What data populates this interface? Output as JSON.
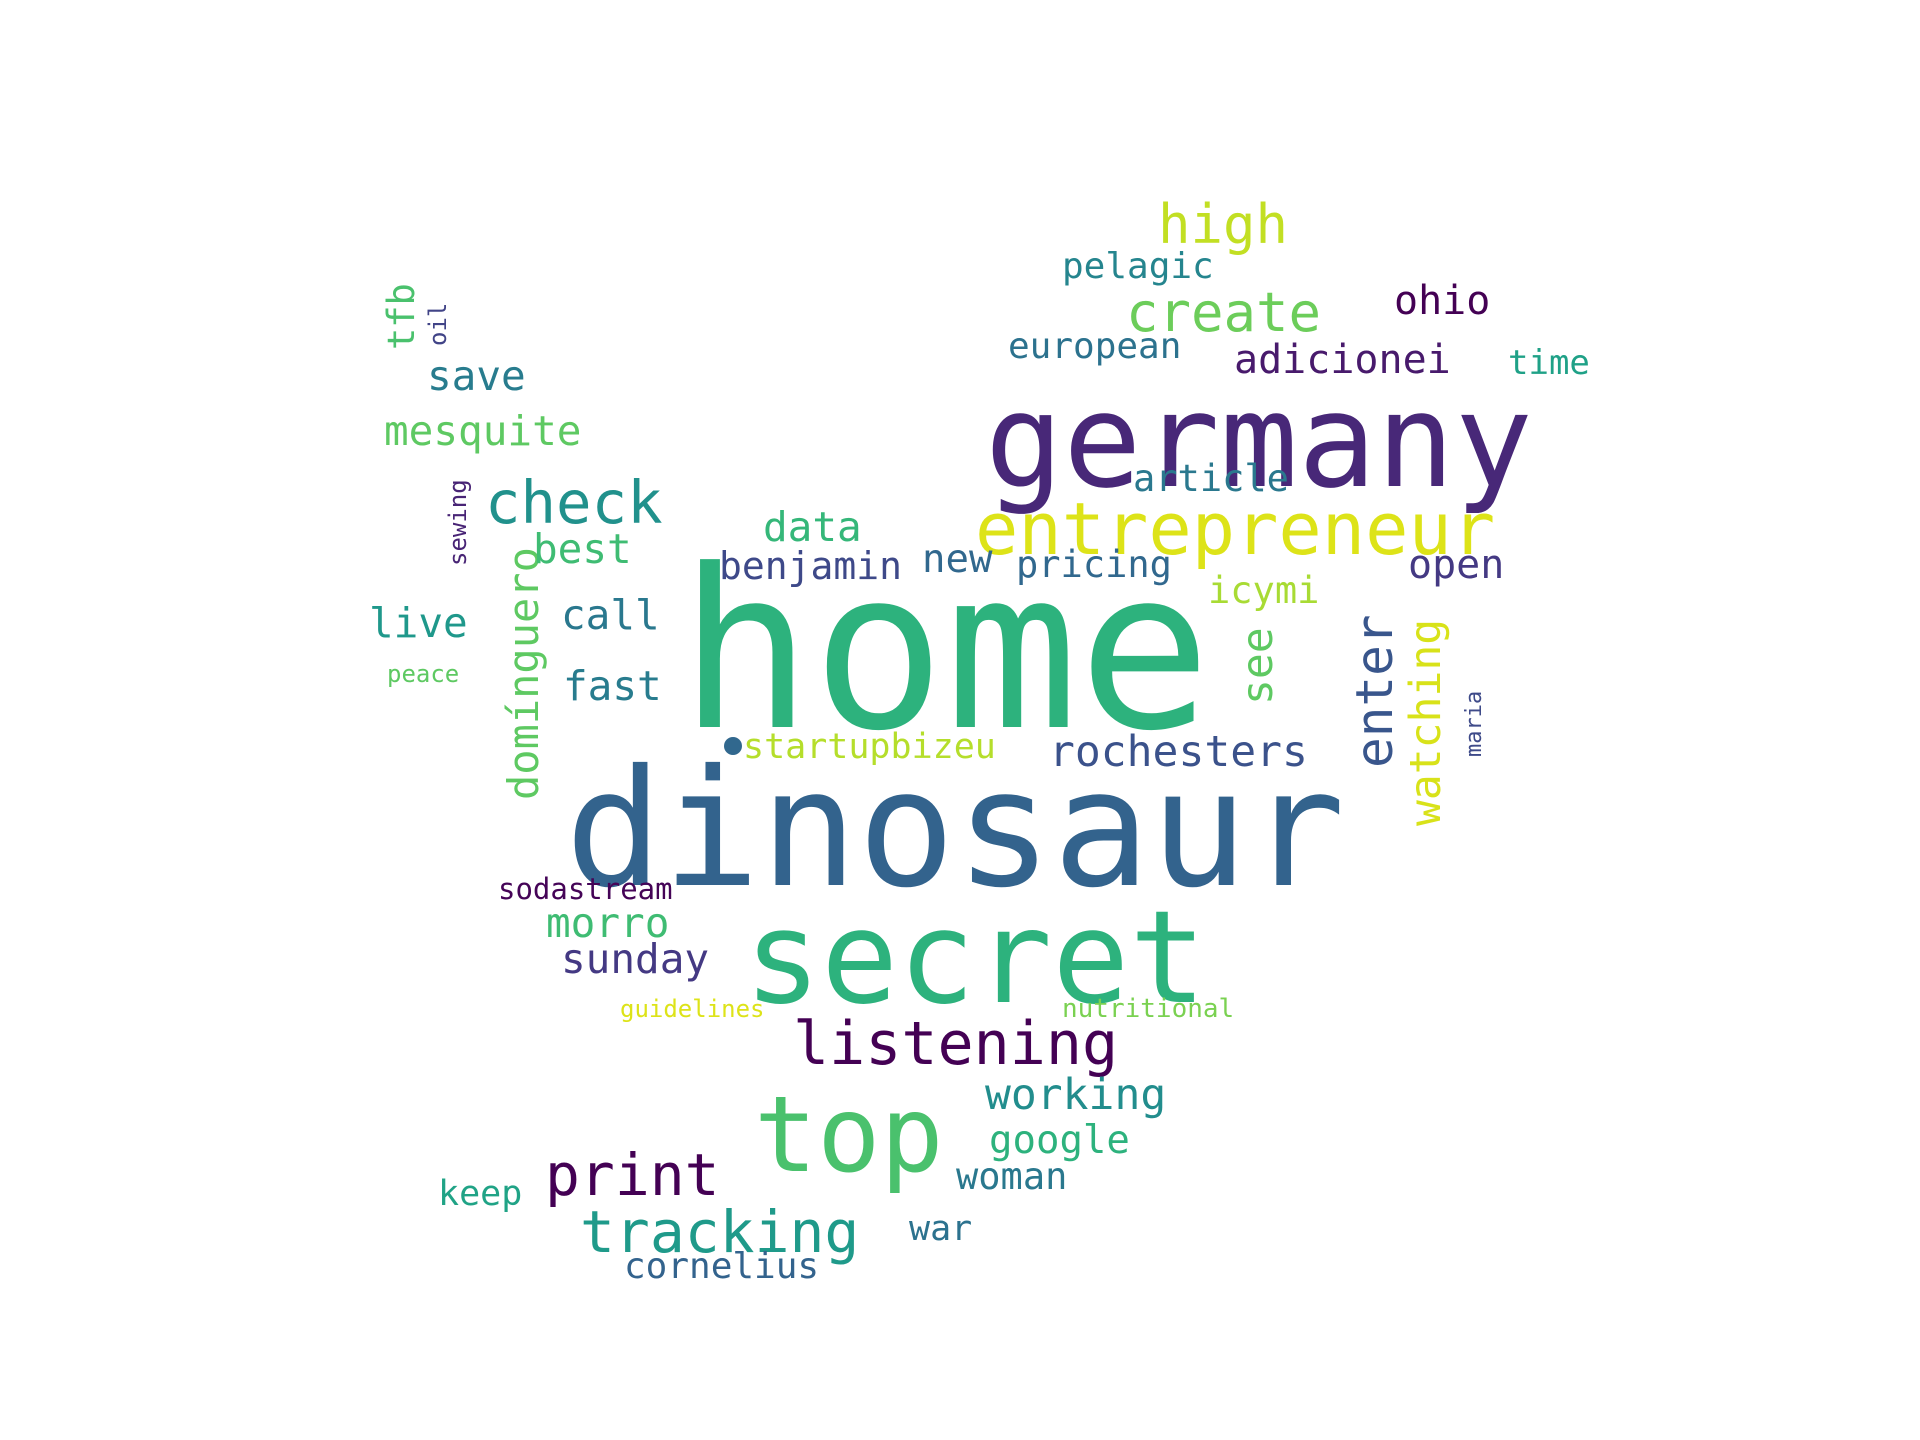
{
  "words": [
    {
      "text": "home",
      "color": "#2db27d"
    },
    {
      "text": "dinosaur",
      "color": "#33638d"
    },
    {
      "text": "secret",
      "color": "#2db27d"
    },
    {
      "text": "germany",
      "color": "#482878"
    },
    {
      "text": "top",
      "color": "#4ac16d"
    },
    {
      "text": "entrepreneur",
      "color": "#dde318"
    },
    {
      "text": "listening",
      "color": "#440154"
    },
    {
      "text": "print",
      "color": "#440154"
    },
    {
      "text": "tracking",
      "color": "#1f9a8a"
    },
    {
      "text": "check",
      "color": "#21918c"
    },
    {
      "text": "create",
      "color": "#6ccd5a"
    },
    {
      "text": "high",
      "color": "#c2df23"
    },
    {
      "text": "enter",
      "color": "#39568c"
    },
    {
      "text": "working",
      "color": "#228d8d"
    },
    {
      "text": "rochesters",
      "color": "#3b528b"
    },
    {
      "text": "watching",
      "color": "#d8e219"
    },
    {
      "text": "domínguero",
      "color": "#5ec962"
    },
    {
      "text": "ohio",
      "color": "#440154"
    },
    {
      "text": "adicionei",
      "color": "#481a6c"
    },
    {
      "text": "open",
      "color": "#443983"
    },
    {
      "text": "pelagic",
      "color": "#25858e"
    },
    {
      "text": "european",
      "color": "#2c728e"
    },
    {
      "text": "save",
      "color": "#287c8e"
    },
    {
      "text": "mesquite",
      "color": "#5ec962"
    },
    {
      "text": "best",
      "color": "#3fbc73"
    },
    {
      "text": "data",
      "color": "#35b779"
    },
    {
      "text": "benjamin",
      "color": "#3e4989"
    },
    {
      "text": "new",
      "color": "#31688e"
    },
    {
      "text": "pricing",
      "color": "#31688e"
    },
    {
      "text": "article",
      "color": "#2a788e"
    },
    {
      "text": "icymi",
      "color": "#a8db34"
    },
    {
      "text": "see",
      "color": "#5ec962"
    },
    {
      "text": "live",
      "color": "#1f988b"
    },
    {
      "text": "call",
      "color": "#2a788e"
    },
    {
      "text": "fast",
      "color": "#287c8e"
    },
    {
      "text": "startupbizeu",
      "color": "#b5de2b"
    },
    {
      "text": "time",
      "color": "#1fa187"
    },
    {
      "text": "morro",
      "color": "#3fbc73"
    },
    {
      "text": "sunday",
      "color": "#443983"
    },
    {
      "text": "sodastream",
      "color": "#450457"
    },
    {
      "text": "google",
      "color": "#2db27d"
    },
    {
      "text": "woman",
      "color": "#2a788e"
    },
    {
      "text": "keep",
      "color": "#20a386"
    },
    {
      "text": "war",
      "color": "#2c728e"
    },
    {
      "text": "cornelius",
      "color": "#33638d"
    },
    {
      "text": "tfb",
      "color": "#4ac16d"
    },
    {
      "text": "oil",
      "color": "#414487"
    },
    {
      "text": "sewing",
      "color": "#482475"
    },
    {
      "text": "peace",
      "color": "#5ec962"
    },
    {
      "text": "maria",
      "color": "#3e4a89"
    },
    {
      "text": "guidelines",
      "color": "#dde318"
    },
    {
      "text": "nutritional",
      "color": "#7ad151"
    }
  ],
  "dot_color": "#31688e"
}
